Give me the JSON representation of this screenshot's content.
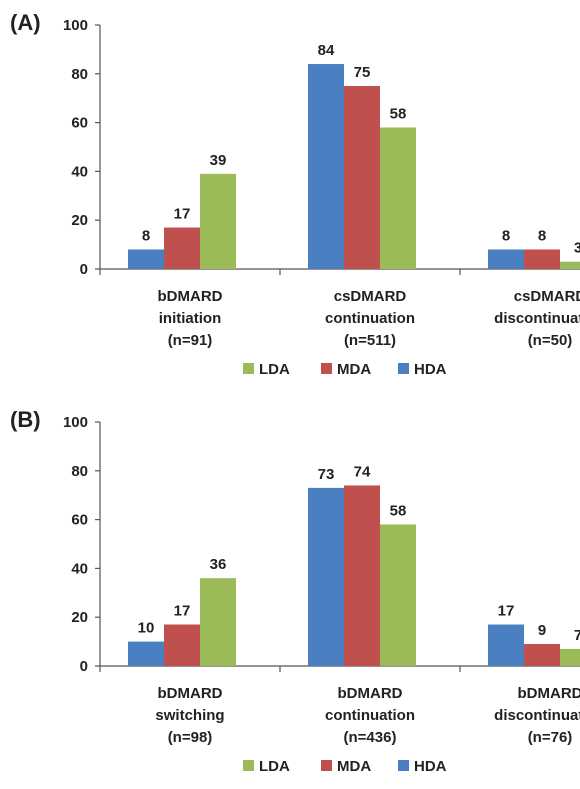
{
  "colors": {
    "HDA": "#4a7fc1",
    "MDA": "#c0504d",
    "LDA": "#9bbb59"
  },
  "chart_data": [
    {
      "type": "bar",
      "panel_label": "(A)",
      "categories": [
        [
          "bDMARD",
          "initiation",
          "(n=91)"
        ],
        [
          "csDMARD",
          "continuation",
          "(n=511)"
        ],
        [
          "csDMARD",
          "discontinuation",
          "(n=50)"
        ]
      ],
      "series": [
        {
          "name": "HDA",
          "values": [
            8,
            84,
            8
          ]
        },
        {
          "name": "MDA",
          "values": [
            17,
            75,
            8
          ]
        },
        {
          "name": "LDA",
          "values": [
            39,
            58,
            3
          ]
        }
      ],
      "ylim": [
        0,
        100
      ],
      "yticks": [
        0,
        20,
        40,
        60,
        80,
        100
      ],
      "legend": [
        "LDA",
        "MDA",
        "HDA"
      ],
      "legend_position": "bottom"
    },
    {
      "type": "bar",
      "panel_label": "(B)",
      "categories": [
        [
          "bDMARD",
          "switching",
          "(n=98)"
        ],
        [
          "bDMARD",
          "continuation",
          "(n=436)"
        ],
        [
          "bDMARD",
          "discontinuation",
          "(n=76)"
        ]
      ],
      "series": [
        {
          "name": "HDA",
          "values": [
            10,
            73,
            17
          ]
        },
        {
          "name": "MDA",
          "values": [
            17,
            74,
            9
          ]
        },
        {
          "name": "LDA",
          "values": [
            36,
            58,
            7
          ]
        }
      ],
      "ylim": [
        0,
        100
      ],
      "yticks": [
        0,
        20,
        40,
        60,
        80,
        100
      ],
      "legend": [
        "LDA",
        "MDA",
        "HDA"
      ],
      "legend_position": "bottom"
    }
  ]
}
